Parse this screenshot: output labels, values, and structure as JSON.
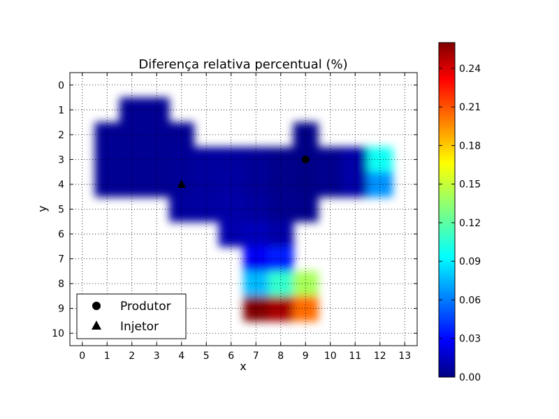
{
  "chart_data": {
    "type": "heatmap",
    "title": "Diferença relativa percentual (%)",
    "xlabel": "x",
    "ylabel": "y",
    "x_ticks": [
      "0",
      "1",
      "2",
      "3",
      "4",
      "5",
      "6",
      "7",
      "8",
      "9",
      "10",
      "11",
      "12",
      "13"
    ],
    "y_ticks": [
      "0",
      "1",
      "2",
      "3",
      "4",
      "5",
      "6",
      "7",
      "8",
      "9",
      "10"
    ],
    "x_range": [
      -0.5,
      13.5
    ],
    "y_range": [
      -0.5,
      10.5
    ],
    "grid": true,
    "colormap": "jet",
    "colorbar": {
      "min": 0.0,
      "max": 0.26,
      "ticks": [
        0.0,
        0.03,
        0.06,
        0.09,
        0.12,
        0.15,
        0.18,
        0.21,
        0.24
      ],
      "tick_labels": [
        "0.00",
        "0.03",
        "0.06",
        "0.09",
        "0.12",
        "0.15",
        "0.18",
        "0.21",
        "0.24"
      ]
    },
    "cells": [
      {
        "x": 2,
        "y": 1,
        "v": 0.005
      },
      {
        "x": 3,
        "y": 1,
        "v": 0.005
      },
      {
        "x": 1,
        "y": 2,
        "v": 0.005
      },
      {
        "x": 2,
        "y": 2,
        "v": 0.005
      },
      {
        "x": 3,
        "y": 2,
        "v": 0.005
      },
      {
        "x": 4,
        "y": 2,
        "v": 0.005
      },
      {
        "x": 9,
        "y": 2,
        "v": 0.002
      },
      {
        "x": 1,
        "y": 3,
        "v": 0.005
      },
      {
        "x": 2,
        "y": 3,
        "v": 0.005
      },
      {
        "x": 3,
        "y": 3,
        "v": 0.005
      },
      {
        "x": 4,
        "y": 3,
        "v": 0.006
      },
      {
        "x": 5,
        "y": 3,
        "v": 0.008
      },
      {
        "x": 6,
        "y": 3,
        "v": 0.008
      },
      {
        "x": 7,
        "y": 3,
        "v": 0.006
      },
      {
        "x": 8,
        "y": 3,
        "v": 0.003
      },
      {
        "x": 9,
        "y": 3,
        "v": 0.002
      },
      {
        "x": 10,
        "y": 3,
        "v": 0.004
      },
      {
        "x": 11,
        "y": 3,
        "v": 0.01
      },
      {
        "x": 12,
        "y": 3,
        "v": 0.1
      },
      {
        "x": 1,
        "y": 4,
        "v": 0.005
      },
      {
        "x": 2,
        "y": 4,
        "v": 0.005
      },
      {
        "x": 3,
        "y": 4,
        "v": 0.005
      },
      {
        "x": 4,
        "y": 4,
        "v": 0.006
      },
      {
        "x": 5,
        "y": 4,
        "v": 0.008
      },
      {
        "x": 6,
        "y": 4,
        "v": 0.009
      },
      {
        "x": 7,
        "y": 4,
        "v": 0.006
      },
      {
        "x": 8,
        "y": 4,
        "v": 0.003
      },
      {
        "x": 9,
        "y": 4,
        "v": 0.002
      },
      {
        "x": 10,
        "y": 4,
        "v": 0.004
      },
      {
        "x": 11,
        "y": 4,
        "v": 0.01
      },
      {
        "x": 12,
        "y": 4,
        "v": 0.07
      },
      {
        "x": 4,
        "y": 5,
        "v": 0.008
      },
      {
        "x": 5,
        "y": 5,
        "v": 0.009
      },
      {
        "x": 6,
        "y": 5,
        "v": 0.01
      },
      {
        "x": 7,
        "y": 5,
        "v": 0.008
      },
      {
        "x": 8,
        "y": 5,
        "v": 0.004
      },
      {
        "x": 9,
        "y": 5,
        "v": 0.003
      },
      {
        "x": 6,
        "y": 6,
        "v": 0.012
      },
      {
        "x": 7,
        "y": 6,
        "v": 0.015
      },
      {
        "x": 8,
        "y": 6,
        "v": 0.01
      },
      {
        "x": 7,
        "y": 7,
        "v": 0.03
      },
      {
        "x": 8,
        "y": 7,
        "v": 0.04
      },
      {
        "x": 7,
        "y": 8,
        "v": 0.08
      },
      {
        "x": 8,
        "y": 8,
        "v": 0.11
      },
      {
        "x": 9,
        "y": 8,
        "v": 0.14
      },
      {
        "x": 7,
        "y": 9,
        "v": 0.26
      },
      {
        "x": 8,
        "y": 9,
        "v": 0.25
      },
      {
        "x": 9,
        "y": 9,
        "v": 0.2
      }
    ],
    "markers": [
      {
        "label": "Produtor",
        "symbol": "circle",
        "x": 9,
        "y": 3
      },
      {
        "label": "Injetor",
        "symbol": "triangle",
        "x": 4,
        "y": 4
      }
    ],
    "legend": {
      "placement": "lower-left",
      "entries": [
        {
          "symbol": "circle",
          "label": "Produtor"
        },
        {
          "symbol": "triangle",
          "label": "Injetor"
        }
      ]
    }
  }
}
